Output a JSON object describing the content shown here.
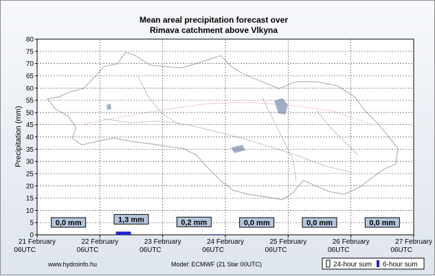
{
  "chart_data": {
    "type": "bar",
    "title_lines": [
      "Mean areal precipitation forecast over",
      "Rimava catchment above Vlkyna"
    ],
    "ylabel": "Precipitation (mm)",
    "ylim": [
      0,
      80
    ],
    "yticks": [
      0,
      5,
      10,
      15,
      20,
      25,
      30,
      35,
      40,
      45,
      50,
      55,
      60,
      65,
      70,
      75,
      80
    ],
    "x_ticks": [
      {
        "date": "21 February",
        "time": "06UTC"
      },
      {
        "date": "22 February",
        "time": "06UTC"
      },
      {
        "date": "23 February",
        "time": "06UTC"
      },
      {
        "date": "24 February",
        "time": "06UTC"
      },
      {
        "date": "25 February",
        "time": "06UTC"
      },
      {
        "date": "26 February",
        "time": "06UTC"
      },
      {
        "date": "27 February",
        "time": "06UTC"
      }
    ],
    "series": [
      {
        "name": "24-hour sum",
        "values": [
          0.0,
          1.3,
          0.2,
          0.0,
          0.0,
          0.0
        ]
      },
      {
        "name": "6-hour sum",
        "values": [
          0,
          0,
          0,
          0,
          0,
          1.3,
          0,
          0,
          0,
          0,
          0,
          0.2,
          0,
          0,
          0,
          0,
          0,
          0,
          0,
          0,
          0,
          0,
          0,
          0
        ]
      }
    ],
    "daily_labels": [
      "0,0 mm",
      "1,3 mm",
      "0,2 mm",
      "0,0 mm",
      "0,0 mm",
      "0,0 mm"
    ],
    "grid": true,
    "legend_position": "bottom-right"
  },
  "footer": {
    "source": "www.hydroinfo.hu",
    "model": "Model:  ECMWF (21  Star 00UTC)"
  },
  "legend": {
    "label_24h": "24-hour sum",
    "label_6h": "6-hour sum"
  },
  "colors": {
    "bar_6h": "#1f1fd6",
    "label_box": "#b4c6dc",
    "map_outline": "#a6aab8"
  }
}
